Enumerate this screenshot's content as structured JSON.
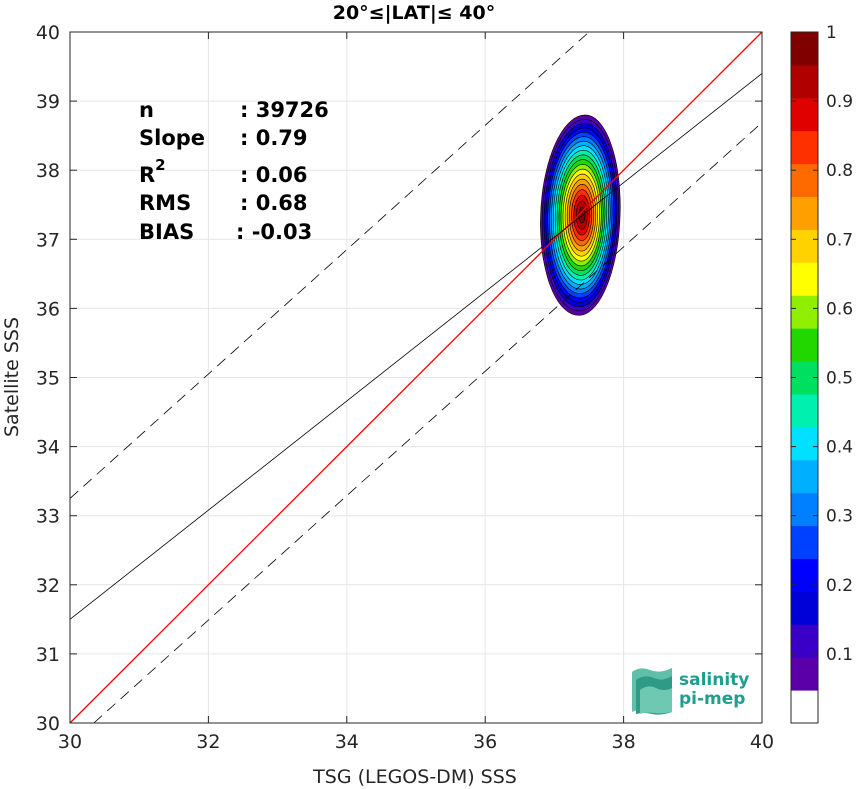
{
  "chart_data": {
    "type": "heatmap",
    "title": "20°≤|LAT|≤ 40°",
    "xlabel": "TSG (LEGOS-DM) SSS",
    "ylabel": "Satellite SSS",
    "xlim": [
      30,
      40
    ],
    "ylim": [
      30,
      40
    ],
    "x_ticks": [
      "30",
      "32",
      "34",
      "36",
      "38",
      "40"
    ],
    "y_ticks": [
      "30",
      "31",
      "32",
      "33",
      "34",
      "35",
      "36",
      "37",
      "38",
      "39",
      "40"
    ],
    "grid": true,
    "density_peak": {
      "x": 37.4,
      "y": 37.35
    },
    "density_spread": {
      "x_low": 36.8,
      "x_high": 37.95,
      "y_low": 35.9,
      "y_high": 38.8
    },
    "lines": [
      {
        "name": "one-to-one",
        "color": "#ff0000",
        "style": "solid",
        "slope": 1.0,
        "intercept": 0.0
      },
      {
        "name": "regression",
        "color": "#000000",
        "style": "solid",
        "slope": 0.79,
        "intercept": 7.8
      },
      {
        "name": "upper-bound",
        "color": "#000000",
        "style": "dashed",
        "slope": 0.9,
        "intercept": 6.25
      },
      {
        "name": "lower-bound",
        "color": "#000000",
        "style": "dashed",
        "slope": 0.9,
        "intercept": 2.69
      }
    ],
    "stats": [
      {
        "label": "n",
        "value": ": 39726"
      },
      {
        "label": "Slope",
        "value": ": 0.79"
      },
      {
        "label": "R",
        "sup": "2",
        "value": ": 0.06"
      },
      {
        "label": "RMS",
        "value": ": 0.68"
      },
      {
        "label": "BIAS",
        "value": ": -0.03"
      }
    ],
    "colorbar": {
      "min": 0,
      "max": 1,
      "ticks": [
        "0.1",
        "0.2",
        "0.3",
        "0.4",
        "0.5",
        "0.6",
        "0.7",
        "0.8",
        "0.9",
        "1"
      ],
      "levels": [
        "#ffffff",
        "#5b00a8",
        "#3a00c8",
        "#0000d8",
        "#0000ff",
        "#0040ff",
        "#0080ff",
        "#00b0ff",
        "#00e0ff",
        "#00f0b0",
        "#00e060",
        "#20d800",
        "#90ee00",
        "#ffff00",
        "#ffd200",
        "#ffa000",
        "#ff6a00",
        "#ff3000",
        "#e00000",
        "#b00000",
        "#800000"
      ]
    }
  },
  "logo": {
    "line1": "salinity",
    "line2": "pi-mep"
  }
}
